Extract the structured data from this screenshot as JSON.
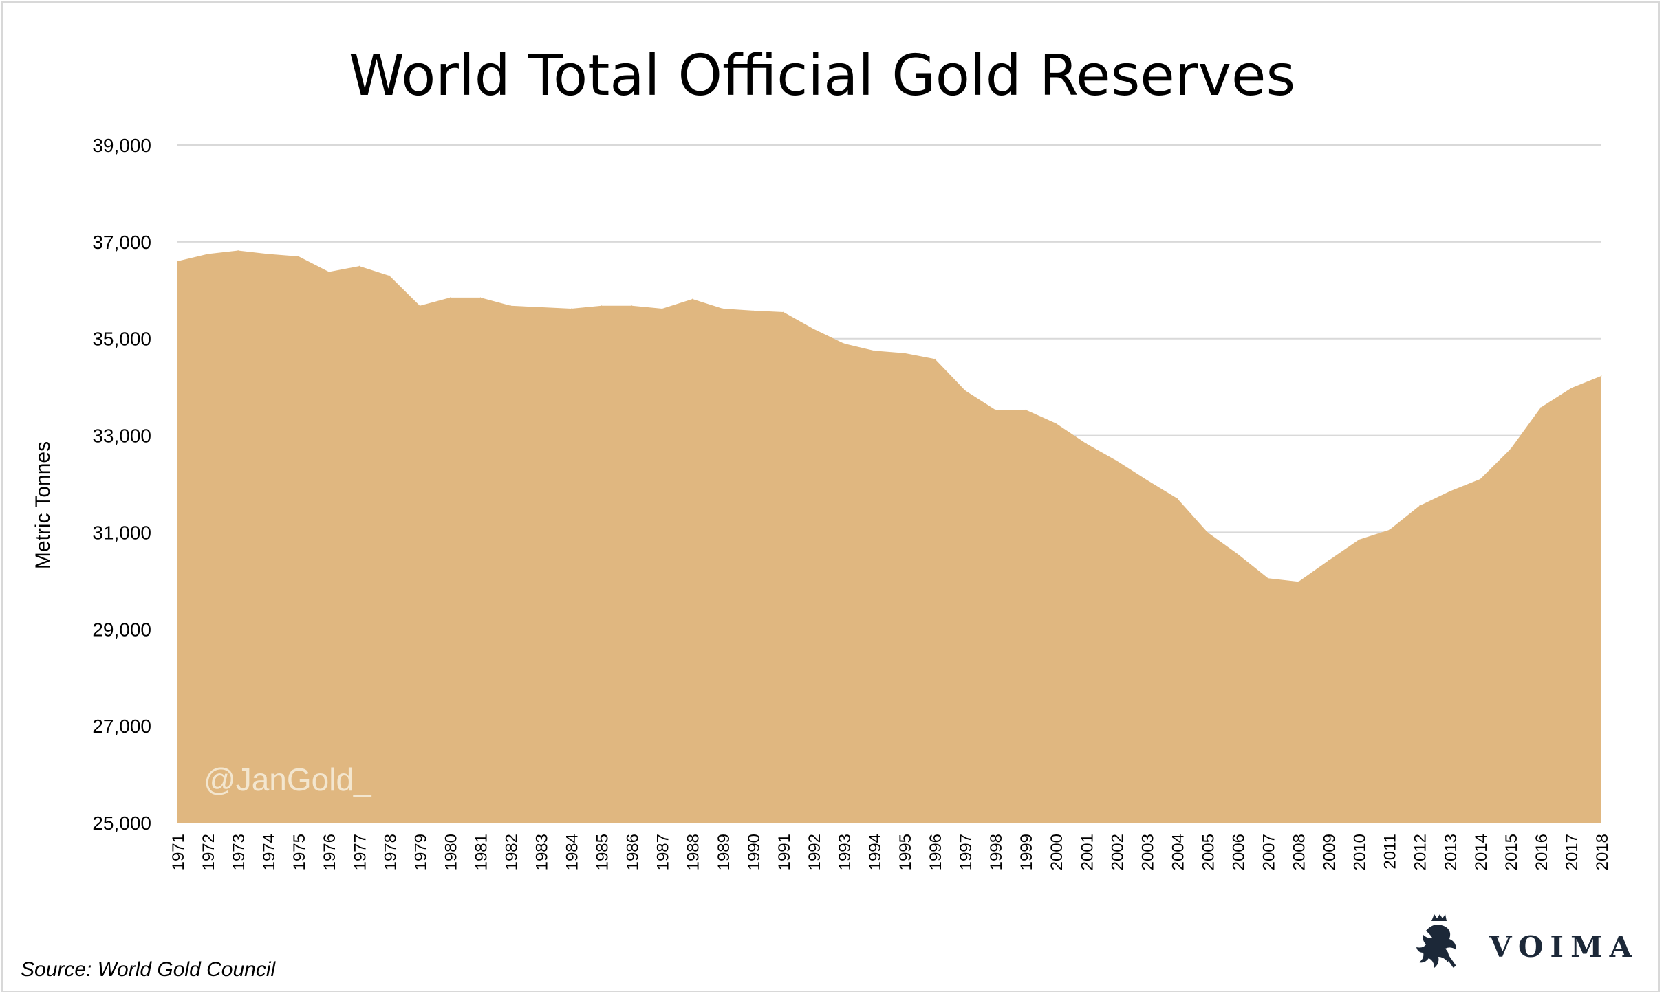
{
  "colors": {
    "area": "#e0b780",
    "grid": "#d9d9d9",
    "brand": "#1c2838",
    "watermark": "#f3e6cf"
  },
  "watermark": "@JanGold_",
  "source": "Source: World Gold Council",
  "brand": {
    "name": "VOIMA",
    "icon": "lion-crest-icon"
  },
  "chart_data": {
    "type": "area",
    "title": "World Total Official Gold Reserves",
    "xlabel": "",
    "ylabel": "Metric Tonnes",
    "ylim": [
      25000,
      39000
    ],
    "yticks": [
      25000,
      27000,
      29000,
      31000,
      33000,
      35000,
      37000,
      39000
    ],
    "ytick_labels": [
      "25,000",
      "27,000",
      "29,000",
      "31,000",
      "33,000",
      "35,000",
      "37,000",
      "39,000"
    ],
    "grid": true,
    "legend": "none",
    "categories": [
      "1971",
      "1972",
      "1973",
      "1974",
      "1975",
      "1976",
      "1977",
      "1978",
      "1979",
      "1980",
      "1981",
      "1982",
      "1983",
      "1984",
      "1985",
      "1986",
      "1987",
      "1988",
      "1989",
      "1990",
      "1991",
      "1992",
      "1993",
      "1994",
      "1995",
      "1996",
      "1997",
      "1998",
      "1999",
      "2000",
      "2001",
      "2002",
      "2003",
      "2004",
      "2005",
      "2006",
      "2007",
      "2008",
      "2009",
      "2010",
      "2011",
      "2012",
      "2013",
      "2014",
      "2015",
      "2016",
      "2017",
      "2018"
    ],
    "values": [
      36600,
      36750,
      36820,
      36750,
      36700,
      36380,
      36500,
      36300,
      35680,
      35850,
      35850,
      35680,
      35650,
      35620,
      35680,
      35680,
      35620,
      35820,
      35620,
      35580,
      35550,
      35200,
      34900,
      34750,
      34700,
      34580,
      33930,
      33530,
      33530,
      33250,
      32830,
      32480,
      32080,
      31700,
      31000,
      30550,
      30050,
      29980,
      30420,
      30850,
      31050,
      31550,
      31850,
      32100,
      32720,
      33580,
      33980,
      34230
    ]
  }
}
